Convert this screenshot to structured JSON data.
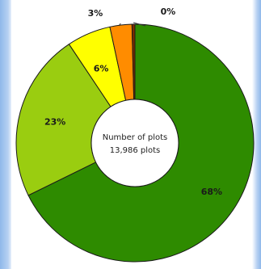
{
  "chart_data": {
    "type": "pie",
    "donut": true,
    "center_label": [
      "Number of plots",
      "13,986 plots"
    ],
    "slices": [
      {
        "label": "68%",
        "value": 68,
        "color": "#2e8b00"
      },
      {
        "label": "23%",
        "value": 23,
        "color": "#9acd10"
      },
      {
        "label": "6%",
        "value": 6,
        "color": "#ffff00"
      },
      {
        "label": "3%",
        "value": 3,
        "color": "#ff8c00"
      },
      {
        "label": "0%",
        "value": 0.4,
        "color": "#7a2b00"
      }
    ]
  }
}
